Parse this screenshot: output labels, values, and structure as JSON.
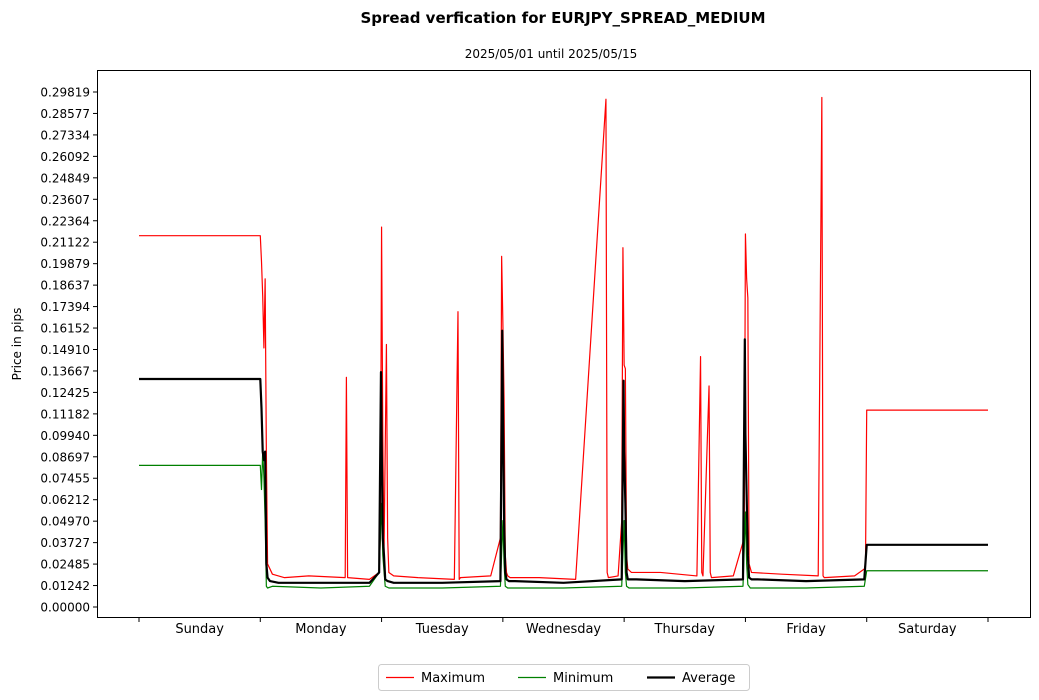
{
  "chart_data": {
    "type": "line",
    "title": "Spread verfication for EURJPY_SPREAD_MEDIUM",
    "subtitle": "2025/05/01 until 2025/05/15",
    "xlabel": "",
    "ylabel": "Price in pips",
    "xlim": [
      0,
      7
    ],
    "ylim": [
      0.0,
      0.29819
    ],
    "categories": [
      "Sunday",
      "Monday",
      "Tuesday",
      "Wednesday",
      "Thursday",
      "Friday",
      "Saturday"
    ],
    "y_ticks": [
      "0.00000",
      "0.01242",
      "0.02485",
      "0.03727",
      "0.04970",
      "0.06212",
      "0.07455",
      "0.08697",
      "0.09940",
      "0.11182",
      "0.12425",
      "0.13667",
      "0.14910",
      "0.16152",
      "0.17394",
      "0.18637",
      "0.19879",
      "0.21122",
      "0.22364",
      "0.23607",
      "0.24849",
      "0.26092",
      "0.27334",
      "0.28577",
      "0.29819"
    ],
    "grid": false,
    "legend": {
      "position": "bottom-center",
      "columns": 3
    },
    "series": [
      {
        "name": "Maximum",
        "color": "#ff0000",
        "x": [
          0,
          1.0,
          1.01,
          1.02,
          1.03,
          1.04,
          1.05,
          1.06,
          1.1,
          1.2,
          1.4,
          1.7,
          1.71,
          1.72,
          1.9,
          1.98,
          1.99,
          2.0,
          2.01,
          2.02,
          2.04,
          2.05,
          2.06,
          2.1,
          2.3,
          2.6,
          2.63,
          2.64,
          2.65,
          2.9,
          2.98,
          2.99,
          3.0,
          3.01,
          3.02,
          3.03,
          3.04,
          3.06,
          3.3,
          3.6,
          3.85,
          3.86,
          3.87,
          3.95,
          3.98,
          3.99,
          4.0,
          4.01,
          4.02,
          4.03,
          4.06,
          4.3,
          4.6,
          4.63,
          4.64,
          4.65,
          4.7,
          4.71,
          4.72,
          4.9,
          4.99,
          5.0,
          5.01,
          5.02,
          5.03,
          5.05,
          5.3,
          5.6,
          5.63,
          5.64,
          5.65,
          5.9,
          5.98,
          5.99,
          6.0,
          6.01,
          7.0
        ],
        "y": [
          0.215,
          0.215,
          0.2,
          0.18,
          0.15,
          0.19,
          0.09,
          0.025,
          0.019,
          0.017,
          0.018,
          0.017,
          0.133,
          0.017,
          0.016,
          0.02,
          0.04,
          0.22,
          0.1,
          0.03,
          0.152,
          0.04,
          0.02,
          0.018,
          0.017,
          0.016,
          0.171,
          0.016,
          0.017,
          0.018,
          0.04,
          0.203,
          0.165,
          0.12,
          0.03,
          0.02,
          0.018,
          0.017,
          0.017,
          0.016,
          0.294,
          0.02,
          0.017,
          0.018,
          0.05,
          0.208,
          0.14,
          0.138,
          0.03,
          0.022,
          0.02,
          0.02,
          0.018,
          0.145,
          0.02,
          0.018,
          0.128,
          0.02,
          0.017,
          0.018,
          0.04,
          0.216,
          0.19,
          0.179,
          0.025,
          0.02,
          0.019,
          0.018,
          0.295,
          0.018,
          0.017,
          0.018,
          0.022,
          0.025,
          0.114,
          0.114,
          0.114
        ]
      },
      {
        "name": "Minimum",
        "color": "#008000",
        "x": [
          0,
          1.0,
          1.01,
          1.02,
          1.03,
          1.04,
          1.05,
          1.06,
          1.1,
          1.5,
          1.9,
          1.98,
          2.0,
          2.01,
          2.03,
          2.06,
          2.5,
          2.98,
          3.0,
          3.01,
          3.02,
          3.04,
          3.5,
          3.98,
          4.0,
          4.01,
          4.02,
          4.04,
          4.5,
          4.98,
          5.0,
          5.01,
          5.02,
          5.04,
          5.5,
          5.98,
          6.0,
          6.01,
          7.0
        ],
        "y": [
          0.082,
          0.082,
          0.068,
          0.09,
          0.075,
          0.05,
          0.012,
          0.011,
          0.012,
          0.011,
          0.012,
          0.02,
          0.06,
          0.03,
          0.012,
          0.011,
          0.011,
          0.012,
          0.05,
          0.025,
          0.012,
          0.011,
          0.011,
          0.012,
          0.05,
          0.02,
          0.012,
          0.011,
          0.011,
          0.012,
          0.055,
          0.025,
          0.013,
          0.011,
          0.011,
          0.012,
          0.021,
          0.021,
          0.021
        ]
      },
      {
        "name": "Average",
        "color": "#000000",
        "x": [
          0,
          1.0,
          1.01,
          1.02,
          1.03,
          1.04,
          1.05,
          1.06,
          1.08,
          1.15,
          1.5,
          1.9,
          1.98,
          1.995,
          2.0,
          2.01,
          2.02,
          2.03,
          2.05,
          2.1,
          2.5,
          2.98,
          2.995,
          3.0,
          3.01,
          3.02,
          3.03,
          3.05,
          3.1,
          3.5,
          3.98,
          3.995,
          4.0,
          4.01,
          4.02,
          4.03,
          4.05,
          4.1,
          4.5,
          4.98,
          4.995,
          5.0,
          5.01,
          5.02,
          5.03,
          5.05,
          5.1,
          5.5,
          5.98,
          6.0,
          6.01,
          7.0
        ],
        "y": [
          0.132,
          0.132,
          0.115,
          0.09,
          0.085,
          0.09,
          0.025,
          0.017,
          0.015,
          0.014,
          0.014,
          0.014,
          0.02,
          0.136,
          0.1,
          0.04,
          0.03,
          0.016,
          0.015,
          0.014,
          0.014,
          0.015,
          0.16,
          0.12,
          0.05,
          0.02,
          0.016,
          0.015,
          0.015,
          0.014,
          0.016,
          0.131,
          0.09,
          0.06,
          0.02,
          0.016,
          0.016,
          0.016,
          0.015,
          0.016,
          0.155,
          0.1,
          0.065,
          0.03,
          0.017,
          0.016,
          0.016,
          0.015,
          0.016,
          0.036,
          0.036,
          0.036
        ]
      }
    ]
  }
}
